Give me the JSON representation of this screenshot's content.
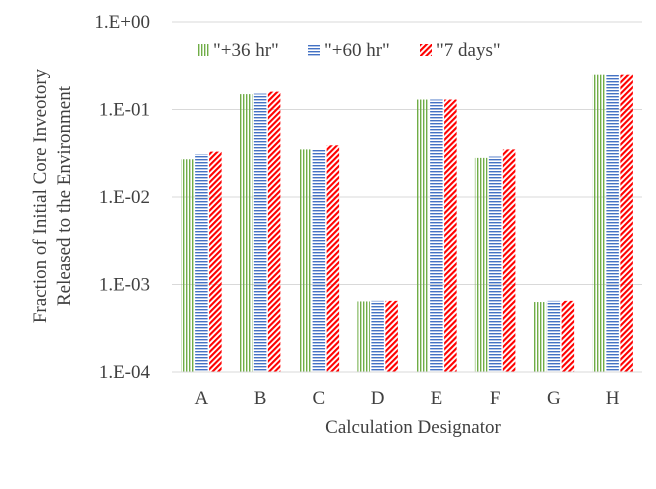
{
  "chart_data": {
    "type": "bar",
    "title": "",
    "xlabel": "Calculation Designator",
    "ylabel_lines": [
      "Fraction of Initial Core Inveotory",
      "Released to the Environment"
    ],
    "yscale": "log",
    "ylim": [
      0.0001,
      1
    ],
    "yticks": [
      "1.E-04",
      "1.E-03",
      "1.E-02",
      "1.E-01",
      "1.E+00"
    ],
    "categories": [
      "A",
      "B",
      "C",
      "D",
      "E",
      "F",
      "G",
      "H"
    ],
    "grid": true,
    "legend_position": "top-left",
    "series": [
      {
        "name": "\"+36 hr\"",
        "color": "#70ad47",
        "pattern": "vertical-stripes",
        "values": [
          0.027,
          0.15,
          0.035,
          0.00064,
          0.13,
          0.028,
          0.00063,
          0.25
        ]
      },
      {
        "name": "\"+60 hr\"",
        "color": "#4472c4",
        "pattern": "horizontal-stripes",
        "values": [
          0.031,
          0.152,
          0.035,
          0.00065,
          0.13,
          0.029,
          0.00065,
          0.25
        ]
      },
      {
        "name": "\"7 days\"",
        "color": "#ff0000",
        "pattern": "diagonal-stripes",
        "values": [
          0.033,
          0.16,
          0.039,
          0.00065,
          0.13,
          0.035,
          0.00065,
          0.25
        ]
      }
    ]
  }
}
